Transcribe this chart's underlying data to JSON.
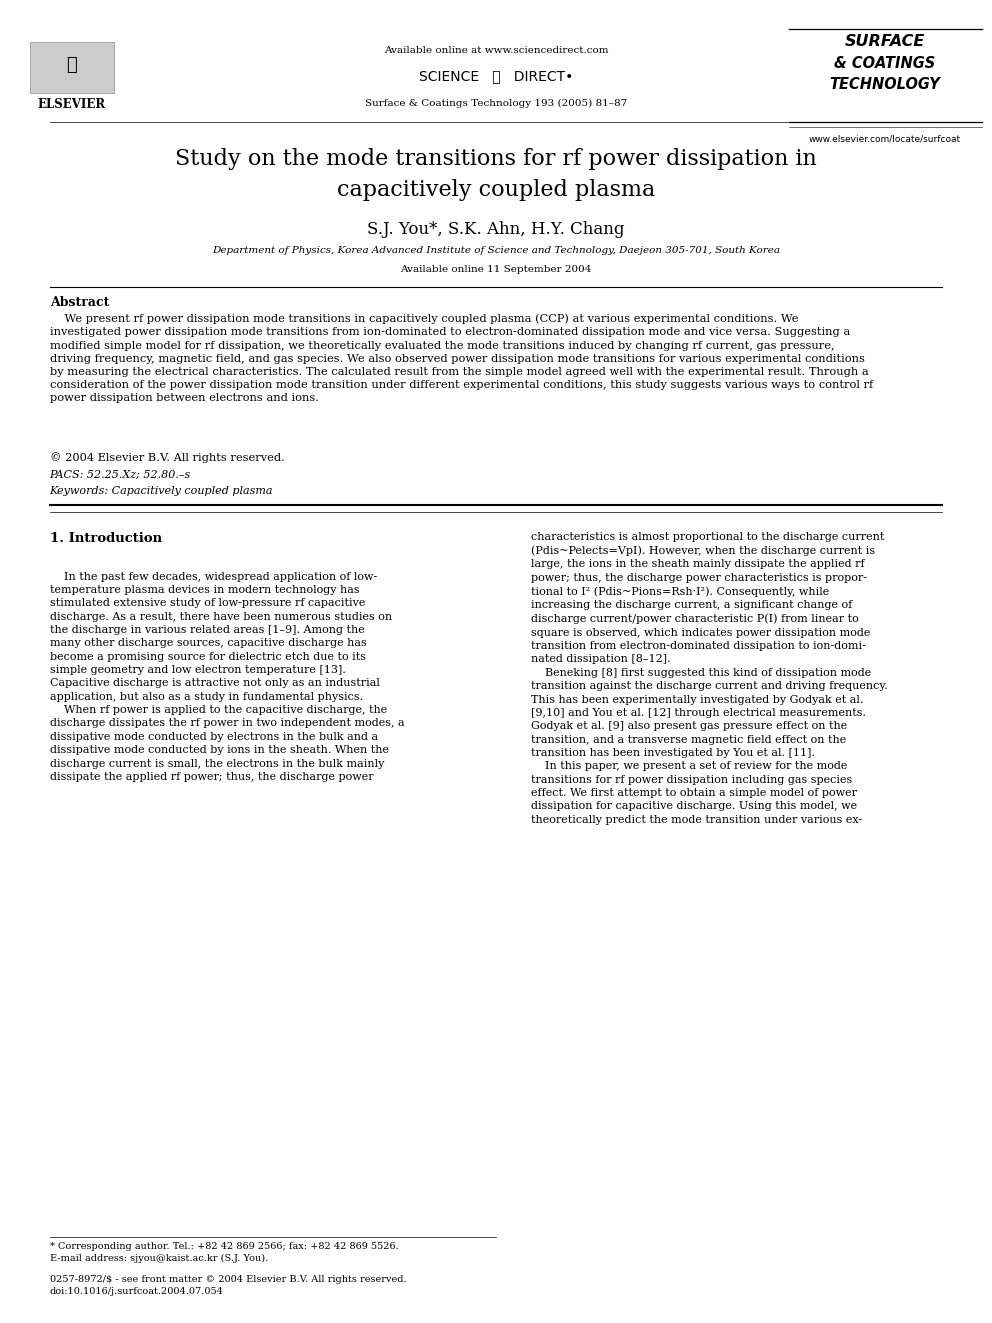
{
  "background_color": "#ffffff",
  "page_width": 9.92,
  "page_height": 13.23,
  "header": {
    "available_online_text": "Available online at www.sciencedirect.com",
    "sciencedirect_text": "SCIENCE   ⓓ   DIRECT•",
    "journal_line": "Surface & Coatings Technology 193 (2005) 81–87",
    "elsevier_text": "ELSEVIER",
    "journal_name_line1": "SURFACE",
    "journal_name_line2": "& COATINGS",
    "journal_name_line3": "TECHNOLOGY",
    "website": "www.elsevier.com/locate/surfcoat"
  },
  "title": "Study on the mode transitions for rf power dissipation in\ncapacitively coupled plasma",
  "authors": "S.J. You*, S.K. Ahn, H.Y. Chang",
  "affiliation": "Department of Physics, Korea Advanced Institute of Science and Technology, Daejeon 305-701, South Korea",
  "available_online_date": "Available online 11 September 2004",
  "abstract_title": "Abstract",
  "abstract_text": "    We present rf power dissipation mode transitions in capacitively coupled plasma (CCP) at various experimental conditions. We\ninvestigated power dissipation mode transitions from ion-dominated to electron-dominated dissipation mode and vice versa. Suggesting a\nmodified simple model for rf dissipation, we theoretically evaluated the mode transitions induced by changing rf current, gas pressure,\ndriving frequency, magnetic field, and gas species. We also observed power dissipation mode transitions for various experimental conditions\nby measuring the electrical characteristics. The calculated result from the simple model agreed well with the experimental result. Through a\nconsideration of the power dissipation mode transition under different experimental conditions, this study suggests various ways to control rf\npower dissipation between electrons and ions.",
  "copyright": "© 2004 Elsevier B.V. All rights reserved.",
  "pacs": "PACS: 52.25.Xz; 52.80.–s",
  "keywords": "Keywords: Capacitively coupled plasma",
  "section1_title": "1. Introduction",
  "col1_intro": "    In the past few decades, widespread application of low-\ntemperature plasma devices in modern technology has\nstimulated extensive study of low-pressure rf capacitive\ndischarge. As a result, there have been numerous studies on\nthe discharge in various related areas [1–9]. Among the\nmany other discharge sources, capacitive discharge has\nbecome a promising source for dielectric etch due to its\nsimple geometry and low electron temperature [13].\nCapacitive discharge is attractive not only as an industrial\napplication, but also as a study in fundamental physics.\n    When rf power is applied to the capacitive discharge, the\ndischarge dissipates the rf power in two independent modes, a\ndissipative mode conducted by electrons in the bulk and a\ndissipative mode conducted by ions in the sheath. When the\ndischarge current is small, the electrons in the bulk mainly\ndissipate the applied rf power; thus, the discharge power",
  "col2_intro": "characteristics is almost proportional to the discharge current\n(Pdis~Pelects=VpI). However, when the discharge current is\nlarge, the ions in the sheath mainly dissipate the applied rf\npower; thus, the discharge power characteristics is propor-\ntional to I² (Pdis~Pions=Rsh·I²). Consequently, while\nincreasing the discharge current, a significant change of\ndischarge current/power characteristic P(I) from linear to\nsquare is observed, which indicates power dissipation mode\ntransition from electron-dominated dissipation to ion-domi-\nnated dissipation [8–12].\n    Beneking [8] first suggested this kind of dissipation mode\ntransition against the discharge current and driving frequency.\nThis has been experimentally investigated by Godyak et al.\n[9,10] and You et al. [12] through electrical measurements.\nGodyak et al. [9] also present gas pressure effect on the\ntransition, and a transverse magnetic field effect on the\ntransition has been investigated by You et al. [11].\n    In this paper, we present a set of review for the mode\ntransitions for rf power dissipation including gas species\neffect. We first attempt to obtain a simple model of power\ndissipation for capacitive discharge. Using this model, we\ntheoretically predict the mode transition under various ex-",
  "footer_left": "* Corresponding author. Tel.: +82 42 869 2566; fax: +82 42 869 5526.\nE-mail address: sjyou@kaist.ac.kr (S.J. You).",
  "footer_issn": "0257-8972/$ - see front matter © 2004 Elsevier B.V. All rights reserved.\ndoi:10.1016/j.surfcoat.2004.07.054"
}
